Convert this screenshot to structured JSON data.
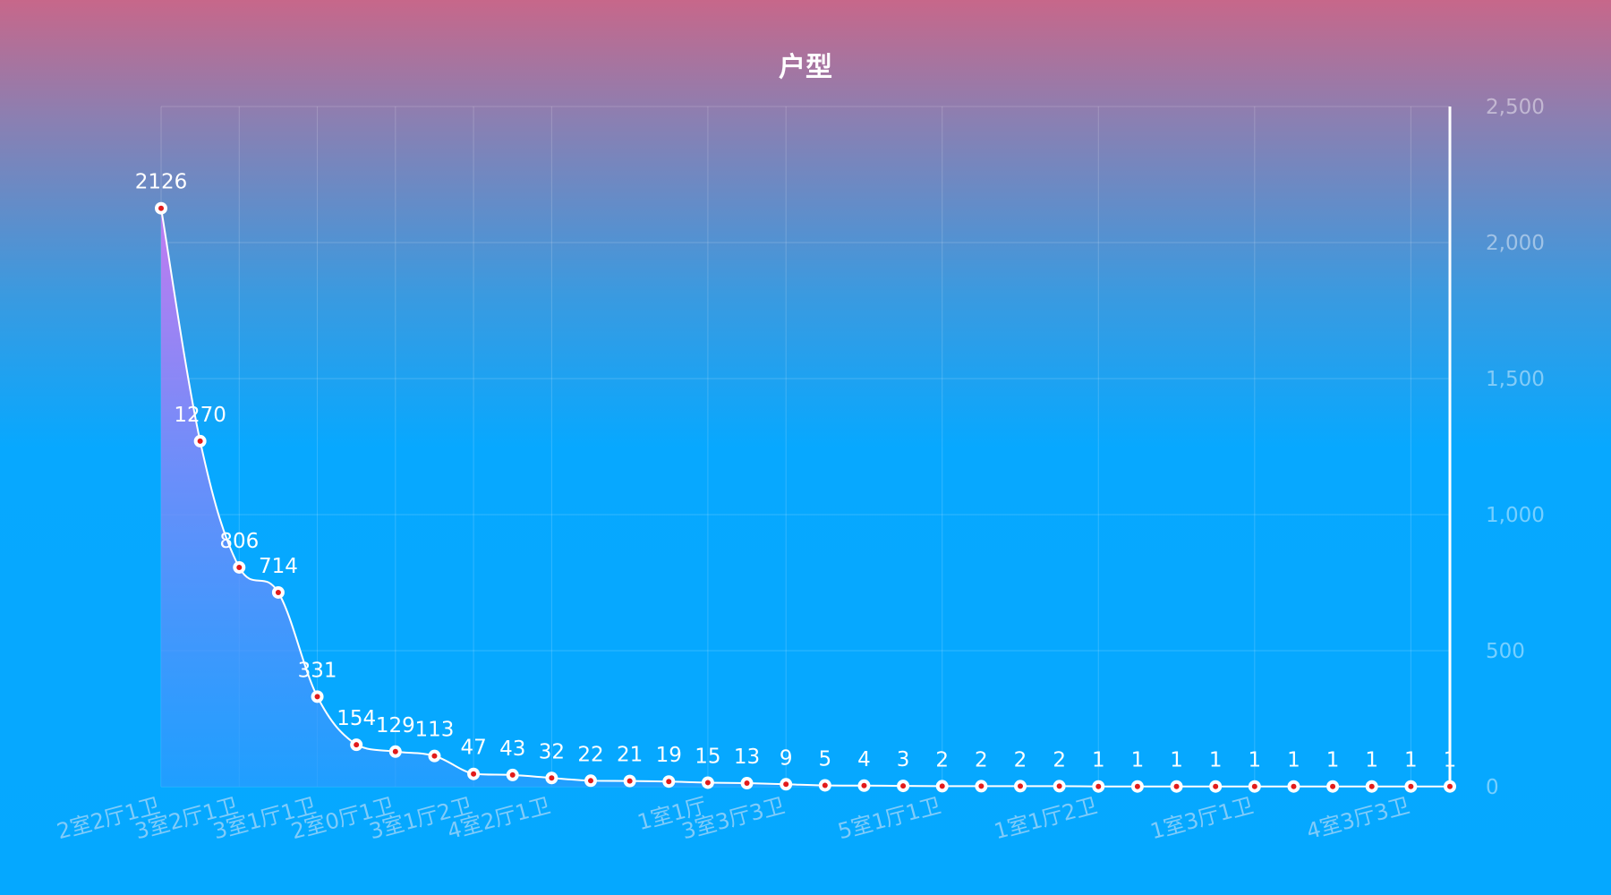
{
  "chart_data": {
    "type": "line",
    "title": "户型",
    "categories": [
      "2室2厅1卫",
      "",
      "3室2厅1卫",
      "",
      "3室1厅1卫",
      "",
      "2室0厅1卫",
      "",
      "3室1厅2卫",
      "",
      "4室2厅1卫",
      "",
      "",
      "",
      "1室1厅",
      "",
      "3室3厅3卫",
      "",
      "",
      "",
      "5室1厅1卫",
      "",
      "",
      "",
      "1室1厅2卫",
      "",
      "",
      "",
      "1室3厅1卫",
      "",
      "",
      "",
      "4室3厅3卫",
      ""
    ],
    "values": [
      2126,
      1270,
      806,
      714,
      331,
      154,
      129,
      113,
      47,
      43,
      32,
      22,
      21,
      19,
      15,
      13,
      9,
      5,
      4,
      3,
      2,
      2,
      2,
      2,
      1,
      1,
      1,
      1,
      1,
      1,
      1,
      1,
      1,
      1
    ],
    "value_labels": [
      "2126",
      "1270",
      "806",
      "714",
      "331",
      "154",
      "129",
      "113",
      "47",
      "43",
      "32",
      "22",
      "21",
      "19",
      "15",
      "13",
      "9",
      "5",
      "4",
      "3",
      "2",
      "2",
      "2",
      "2",
      "1",
      "1",
      "1",
      "1",
      "1",
      "1",
      "1",
      "1",
      "1",
      "1"
    ],
    "y_axis": {
      "position": "right",
      "ylim": [
        0,
        2500
      ],
      "tick_labels": [
        "0",
        "500",
        "1,000",
        "1,500",
        "2,000",
        "2,500"
      ]
    },
    "grid": true,
    "area_fill": true,
    "colors": {
      "line": "#ffffff",
      "marker_fill": "#ffffff",
      "marker_center": "#e31a1a",
      "area_top": "#c77af3",
      "area_bottom": "#2a9bff",
      "axis_label": "#9fd3f7",
      "data_label": "#ffffff"
    }
  }
}
